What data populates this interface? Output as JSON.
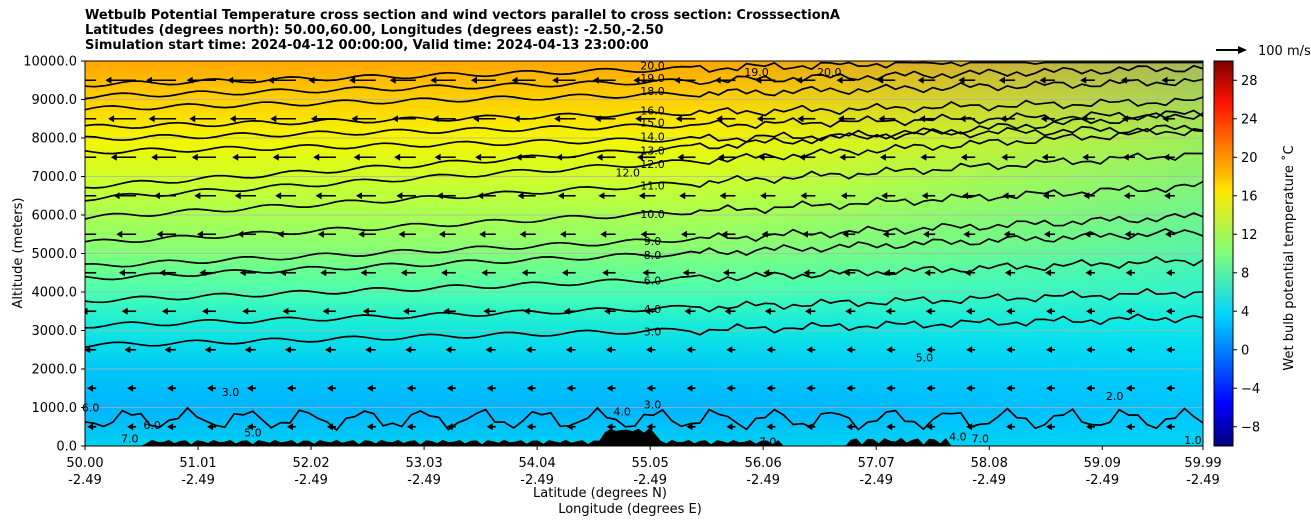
{
  "title_lines": [
    "Wetbulb Potential Temperature cross section and wind vectors parallel to cross section: CrosssectionA",
    "Latitudes (degrees north): 50.00,60.00, Longitudes (degrees east): -2.50,-2.50",
    "Simulation start time: 2024-04-12 00:00:00, Valid time: 2024-04-13 23:00:00"
  ],
  "chart_data": {
    "type": "heatmap",
    "description_type": "contour cross-section with wind vectors",
    "xlabel_line1": "Latitude (degrees N)",
    "xlabel_line2": "Longitude (degrees E)",
    "ylabel": "Altitude (meters)",
    "x_range": [
      50.0,
      59.99
    ],
    "ylim": [
      0,
      10000
    ],
    "x_tick_lat": [
      "50.00",
      "51.01",
      "52.02",
      "53.03",
      "54.04",
      "55.05",
      "56.06",
      "57.07",
      "58.08",
      "59.09",
      "59.99"
    ],
    "x_tick_lon": [
      "-2.49",
      "-2.49",
      "-2.49",
      "-2.49",
      "-2.49",
      "-2.49",
      "-2.49",
      "-2.49",
      "-2.49",
      "-2.49",
      "-2.49"
    ],
    "y_ticks": [
      "0.0",
      "1000.0",
      "2000.0",
      "3000.0",
      "4000.0",
      "5000.0",
      "6000.0",
      "7000.0",
      "8000.0",
      "9000.0",
      "10000.0"
    ],
    "grid": "horizontal",
    "colorbar": {
      "label": "Wet bulb potential temperature ˚C",
      "range": [
        -10,
        30
      ],
      "ticks": [
        "−8",
        "−4",
        "0",
        "4",
        "8",
        "12",
        "16",
        "20",
        "24",
        "28"
      ]
    },
    "wind_key_label": "100 m/s",
    "contour_labels_mid_column": [
      {
        "value": "20.0",
        "alt": 9880
      },
      {
        "value": "19.0",
        "alt": 9560
      },
      {
        "value": "18.0",
        "alt": 9220
      },
      {
        "value": "16.0",
        "alt": 8720
      },
      {
        "value": "15.0",
        "alt": 8400
      },
      {
        "value": "14.0",
        "alt": 8040
      },
      {
        "value": "13.0",
        "alt": 7680
      },
      {
        "value": "12.0",
        "alt": 7320
      },
      {
        "value": "11.0",
        "alt": 6760
      },
      {
        "value": "10.0",
        "alt": 6020
      },
      {
        "value": "9.0",
        "alt": 5320
      },
      {
        "value": "8.0",
        "alt": 4960
      },
      {
        "value": "6.0",
        "alt": 4300
      },
      {
        "value": "4.0",
        "alt": 3560
      },
      {
        "value": "3.0",
        "alt": 2980
      },
      {
        "value": "3.0",
        "alt": 1080
      }
    ],
    "contour_labels_other": [
      {
        "value": "12.0",
        "lat": 54.85,
        "alt": 7100
      },
      {
        "value": "19.0",
        "lat": 56.0,
        "alt": 9720
      },
      {
        "value": "20.0",
        "lat": 56.65,
        "alt": 9720
      },
      {
        "value": "5.0",
        "lat": 57.5,
        "alt": 2300
      },
      {
        "value": "2.0",
        "lat": 59.2,
        "alt": 1300
      },
      {
        "value": "3.0",
        "lat": 51.3,
        "alt": 1400
      },
      {
        "value": "4.0",
        "lat": 54.8,
        "alt": 900
      },
      {
        "value": "5.0",
        "lat": 51.5,
        "alt": 350
      },
      {
        "value": "6.0",
        "lat": 50.6,
        "alt": 550
      },
      {
        "value": "7.0",
        "lat": 50.4,
        "alt": 200
      },
      {
        "value": "7.0",
        "lat": 56.1,
        "alt": 120
      },
      {
        "value": "4.0",
        "lat": 57.8,
        "alt": 250
      },
      {
        "value": "7.0",
        "lat": 58.0,
        "alt": 200
      },
      {
        "value": "6.0",
        "lat": 50.05,
        "alt": 1000
      },
      {
        "value": "1.0",
        "lat": 59.9,
        "alt": 150
      }
    ]
  }
}
